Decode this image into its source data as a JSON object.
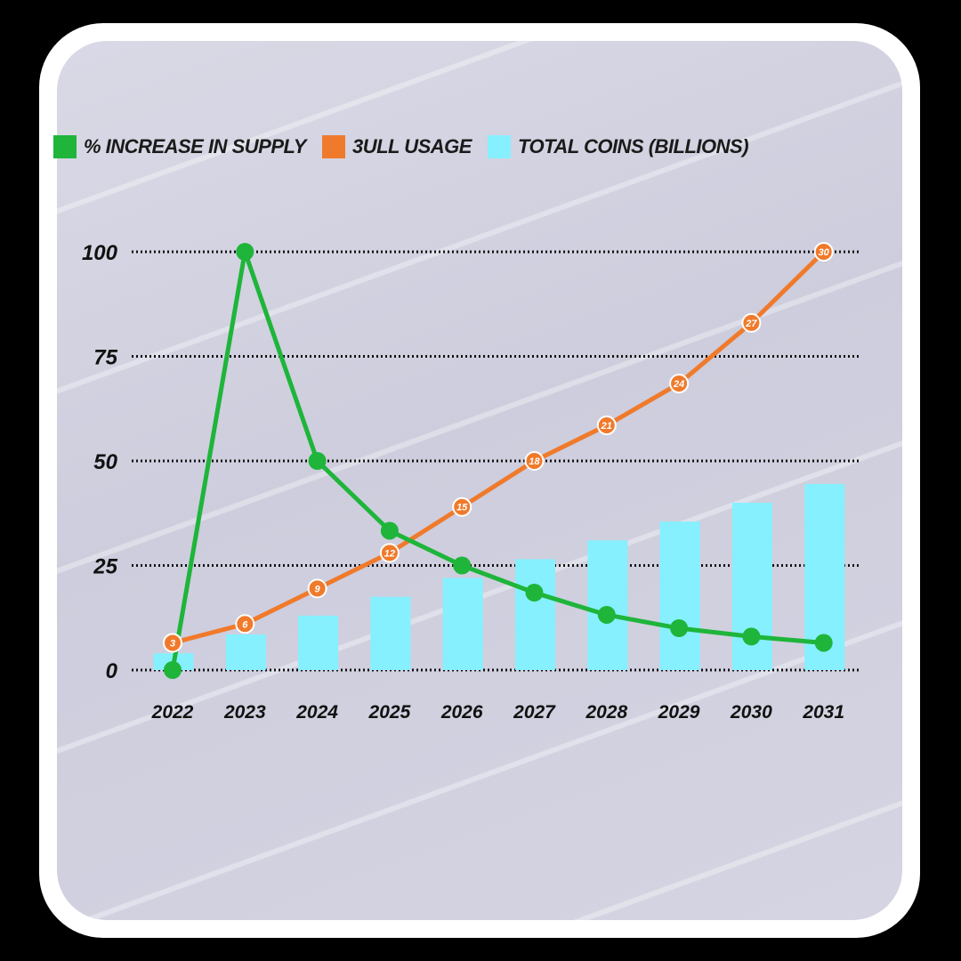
{
  "chart_data": {
    "type": "line",
    "categories": [
      "2022",
      "2023",
      "2024",
      "2025",
      "2026",
      "2027",
      "2028",
      "2029",
      "2030",
      "2031"
    ],
    "yticks": [
      "0",
      "25",
      "50",
      "75",
      "100"
    ],
    "ylim": [
      0,
      100
    ],
    "grid": true,
    "legend_position": "top",
    "series": [
      {
        "name": "% INCREASE IN SUPPLY",
        "kind": "line",
        "color": "#1eb53a",
        "values": [
          0,
          100,
          50,
          33.3,
          25,
          18.5,
          13.2,
          10,
          8,
          6.5
        ]
      },
      {
        "name": "3ULL USAGE",
        "kind": "line",
        "color": "#f07a2b",
        "point_labels": [
          "3",
          "6",
          "9",
          "12",
          "15",
          "18",
          "21",
          "24",
          "27",
          "30"
        ],
        "values": [
          6.5,
          11,
          19.5,
          28,
          39,
          50,
          58.5,
          68.5,
          83,
          100
        ]
      },
      {
        "name": "TOTAL COINS (BILLIONS)",
        "kind": "bar",
        "color": "#86f0ff",
        "values": [
          4,
          8.5,
          13,
          17.5,
          22,
          26.5,
          31,
          35.5,
          40,
          44.5
        ]
      }
    ]
  }
}
